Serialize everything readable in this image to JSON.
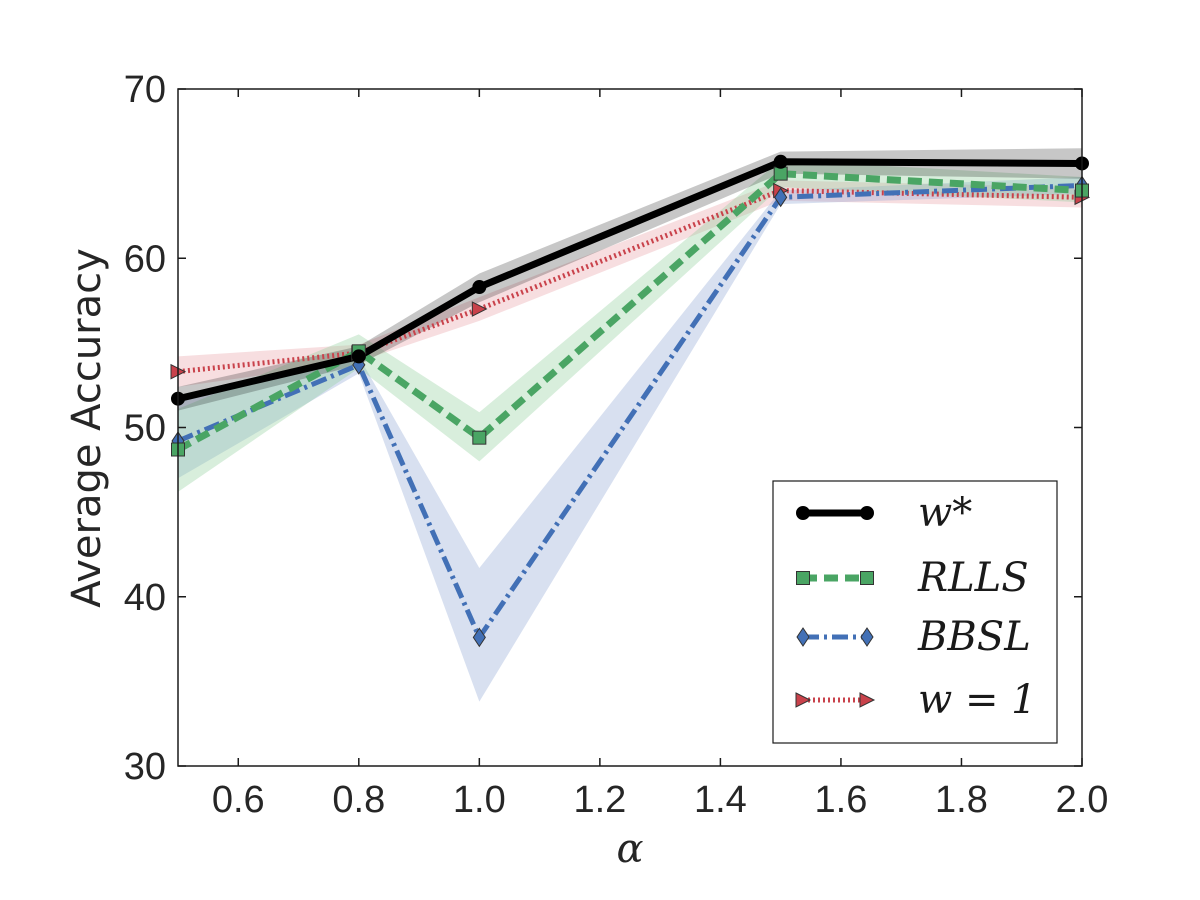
{
  "chart_data": {
    "type": "line",
    "xlabel": "α",
    "ylabel": "Average Accuracy",
    "xlim": [
      0.5,
      2.0
    ],
    "ylim": [
      30,
      70
    ],
    "xticks": [
      "0.6",
      "0.8",
      "1.0",
      "1.2",
      "1.4",
      "1.6",
      "1.8",
      "2.0"
    ],
    "yticks": [
      "30",
      "40",
      "50",
      "60",
      "70"
    ],
    "grid": false,
    "legend_position": "bottom-right",
    "x": [
      0.5,
      0.8,
      1.0,
      1.5,
      2.0
    ],
    "series": [
      {
        "name": "w*",
        "values": [
          51.7,
          54.2,
          58.3,
          65.7,
          65.6
        ],
        "band_low": [
          51.0,
          53.7,
          57.4,
          65.0,
          64.7
        ],
        "band_high": [
          52.4,
          54.8,
          59.1,
          66.3,
          66.5
        ],
        "color": "#000000",
        "marker": "circle",
        "linestyle": "solid"
      },
      {
        "name": "RLLS",
        "values": [
          48.7,
          54.5,
          49.4,
          65.0,
          64.0
        ],
        "band_low": [
          46.2,
          53.5,
          48.0,
          64.2,
          63.3
        ],
        "band_high": [
          51.1,
          55.5,
          50.9,
          65.8,
          64.8
        ],
        "color": "#4aa564",
        "band_color": "#8ecf9b",
        "marker": "square",
        "linestyle": "dashed"
      },
      {
        "name": "BBSL",
        "values": [
          49.2,
          53.7,
          37.6,
          63.6,
          64.3
        ],
        "band_low": [
          47.0,
          53.2,
          33.8,
          63.2,
          63.8
        ],
        "band_high": [
          51.5,
          54.2,
          41.7,
          64.0,
          64.8
        ],
        "color": "#4270b6",
        "band_color": "#8ea5d3",
        "marker": "diamond",
        "linestyle": "dashdot"
      },
      {
        "name": "w = 1",
        "values": [
          53.3,
          54.4,
          57.0,
          64.0,
          63.6
        ],
        "band_low": [
          52.4,
          53.9,
          56.3,
          63.4,
          63.0
        ],
        "band_high": [
          54.2,
          54.9,
          57.7,
          64.6,
          64.2
        ],
        "color": "#c9424b",
        "band_color": "#e8a1a6",
        "marker": "triangle-right",
        "linestyle": "dotted"
      }
    ]
  }
}
